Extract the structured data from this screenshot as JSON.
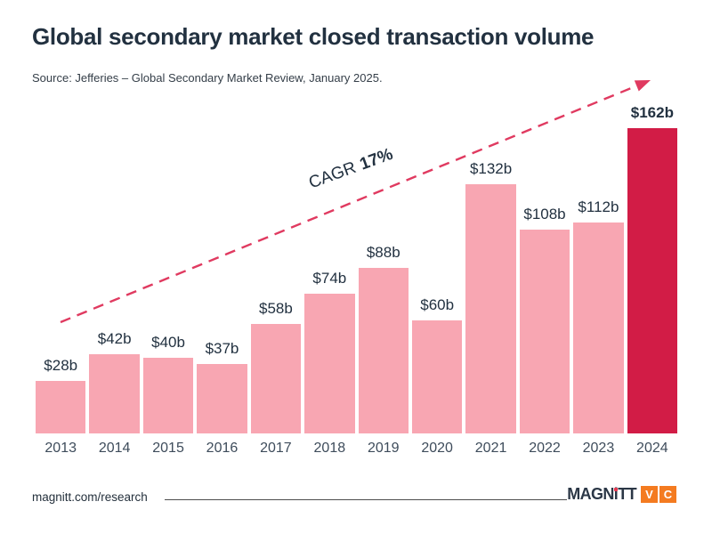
{
  "header": {
    "title": "Global secondary market closed transaction volume",
    "source": "Source: Jefferies – Global Secondary Market Review, January 2025."
  },
  "chart_data": {
    "type": "bar",
    "title": "Global secondary market closed transaction volume",
    "categories": [
      "2013",
      "2014",
      "2015",
      "2016",
      "2017",
      "2018",
      "2019",
      "2020",
      "2021",
      "2022",
      "2023",
      "2024"
    ],
    "values": [
      28,
      42,
      40,
      37,
      58,
      74,
      88,
      60,
      132,
      108,
      112,
      162
    ],
    "value_labels": [
      "$28b",
      "$42b",
      "$40b",
      "$37b",
      "$58b",
      "$74b",
      "$88b",
      "$60b",
      "$132b",
      "$108b",
      "$112b",
      "$162b"
    ],
    "xlabel": "",
    "ylabel": "",
    "ylim": [
      0,
      170
    ],
    "grid": false,
    "legend": false,
    "bar_color": "#F8A6B2",
    "highlight_color": "#D21C46",
    "highlight_index": 11,
    "label_color": "#223140",
    "annotation": {
      "text_regular": "CAGR",
      "text_bold": "17%",
      "arrow_color": "#E03A60"
    }
  },
  "footer": {
    "url": "magnitt.com/research",
    "logo": {
      "name": "MAGNiTT",
      "part_before_i": "MAGN",
      "i_letter": "i",
      "part_after_i": "TT",
      "vc": [
        "V",
        "C"
      ],
      "box_color": "#F47B20"
    }
  }
}
